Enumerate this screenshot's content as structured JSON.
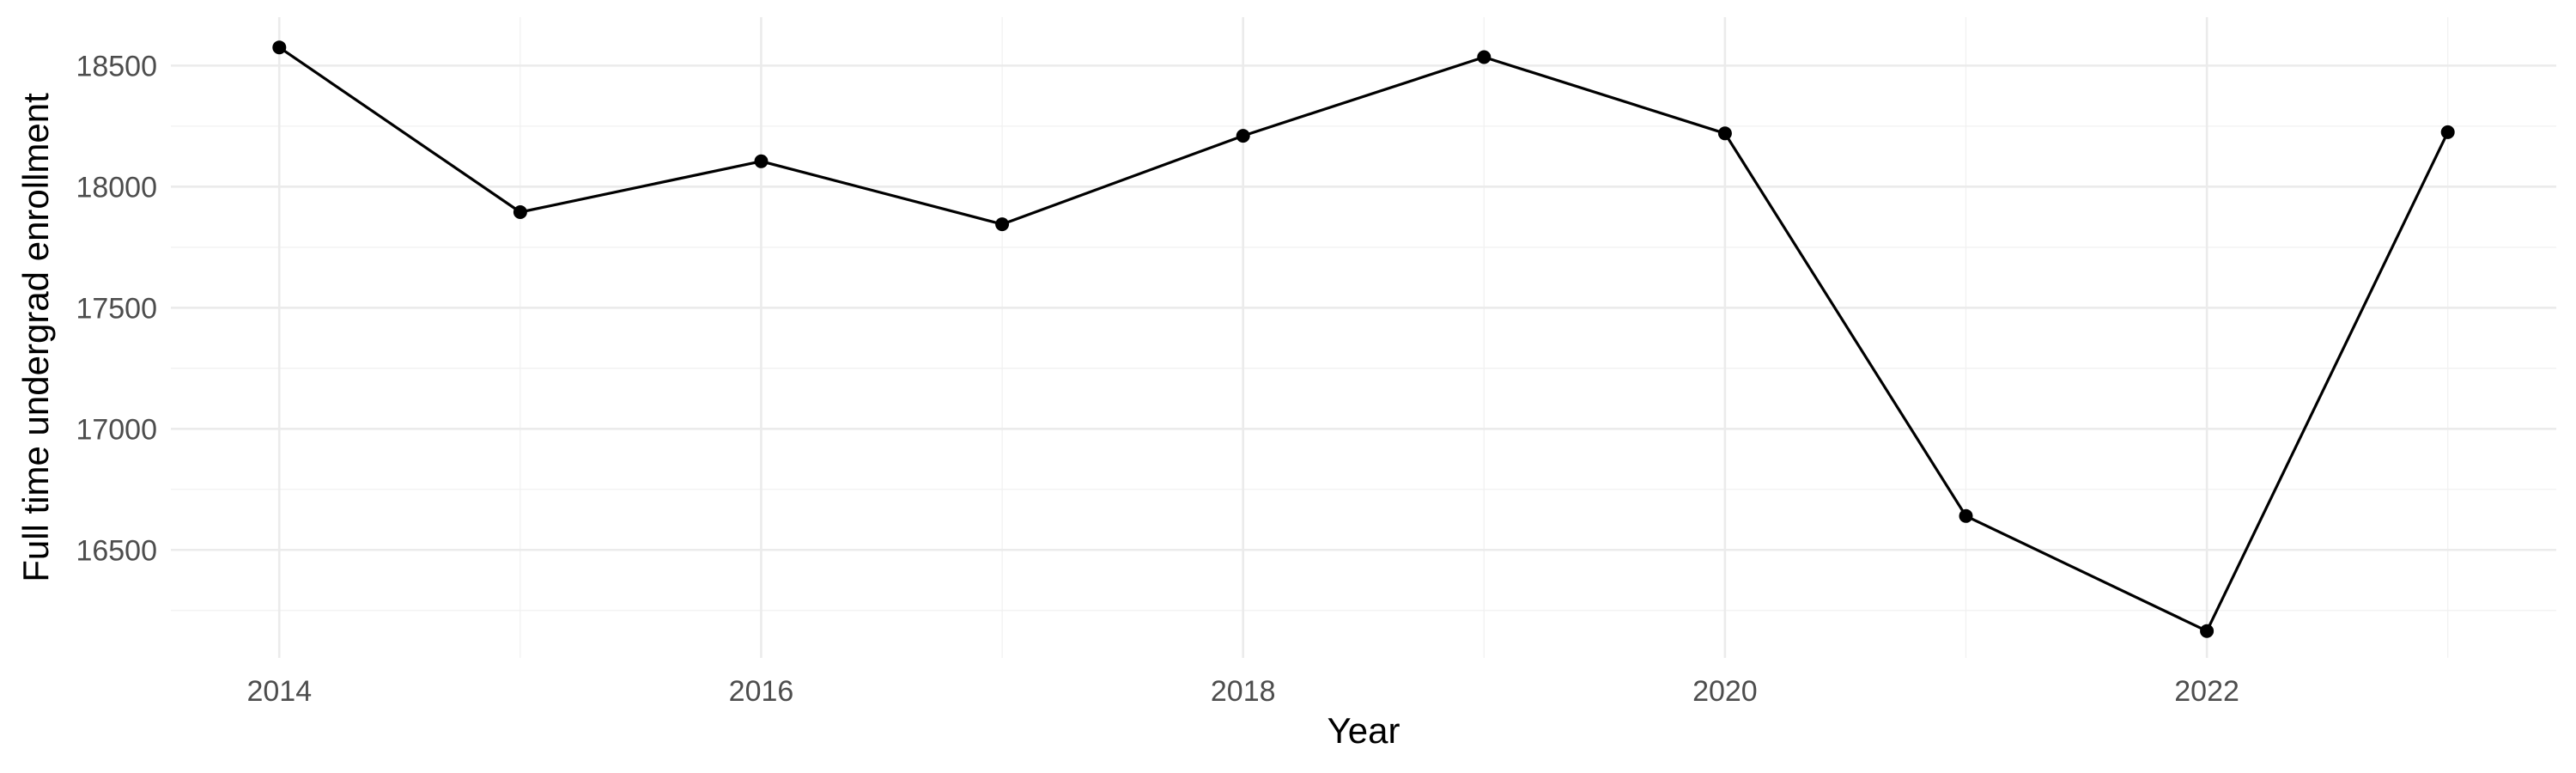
{
  "figure": {
    "background_color": "#FFFFFF"
  },
  "chart_data": {
    "type": "line",
    "title": "",
    "xlabel": "Year",
    "ylabel": "Full time undergrad enrollment",
    "x": [
      2014,
      2015,
      2016,
      2017,
      2018,
      2019,
      2020,
      2021,
      2022,
      2023
    ],
    "series": [
      {
        "name": "Full time undergrad enrollment",
        "values": [
          18575,
          17895,
          18105,
          17845,
          18210,
          18535,
          18220,
          16640,
          16165,
          18225
        ]
      }
    ],
    "x_major_ticks": [
      2014,
      2016,
      2018,
      2020,
      2022
    ],
    "x_tick_labels": [
      "2014",
      "2016",
      "2018",
      "2020",
      "2022"
    ],
    "x_minor_gridlines": [
      2015,
      2017,
      2019,
      2021,
      2023
    ],
    "y_major_ticks": [
      18500,
      18000,
      17500,
      17000,
      16500
    ],
    "y_tick_labels": [
      "18500",
      "18000",
      "17500",
      "17000",
      "16500"
    ],
    "y_minor_gridlines": [
      18250,
      17750,
      17250,
      16750,
      16250
    ],
    "xlim": [
      2013.55,
      2023.45
    ],
    "ylim": [
      16054,
      18700
    ],
    "grid": "major+minor",
    "legend": false,
    "axis_lines": false,
    "tick_marks": false,
    "line_color": "#000000",
    "point_color": "#000000",
    "axis_text_color": "#4D4D4D",
    "axis_title_color": "#000000",
    "grid_major_color": "#EBEBEB",
    "grid_minor_color": "#F1F1F1"
  }
}
